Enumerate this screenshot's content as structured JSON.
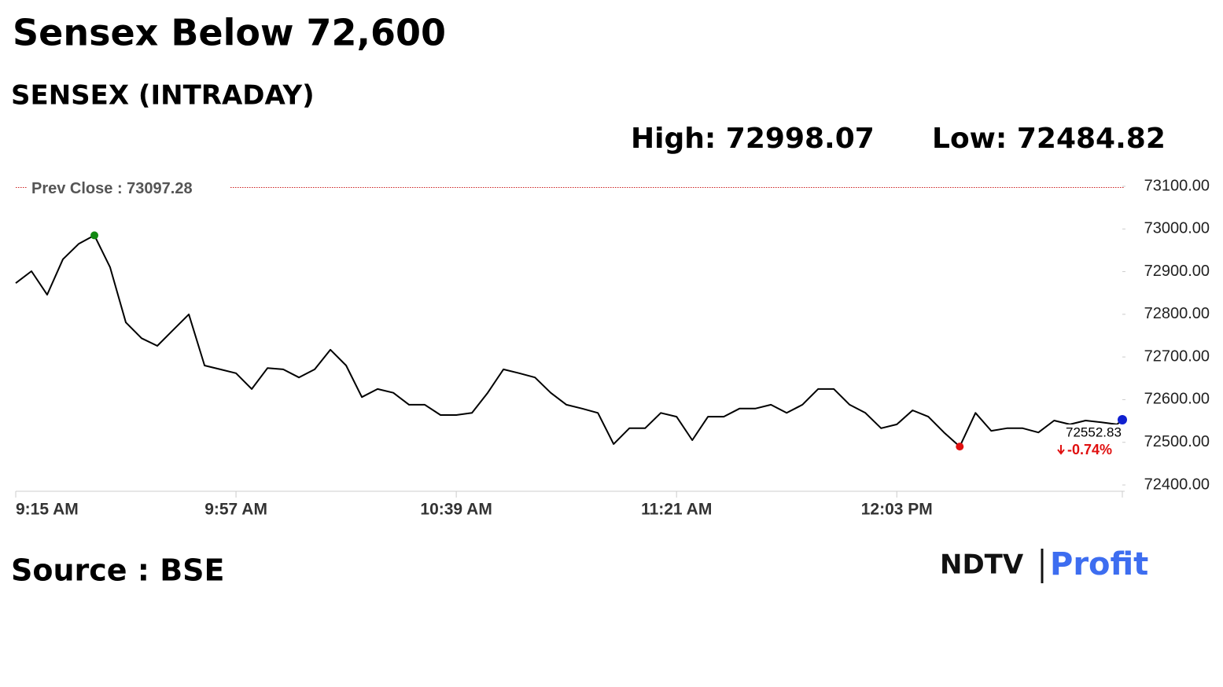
{
  "chart_data": {
    "type": "line",
    "title": "Sensex Below 72,600",
    "subtitle": "SENSEX (INTRADAY)",
    "high_label": "High: 72998.07",
    "low_label": "Low: 72484.82",
    "prev_close": {
      "value": 73097.28,
      "label": "Prev Close : 73097.28",
      "color": "#cc2222"
    },
    "change_label": "-0.74%",
    "source": "Source : BSE",
    "logo": {
      "left": "NDTV",
      "right": "Profit"
    },
    "x": [
      "9:15 AM",
      "9:18 AM",
      "9:21 AM",
      "9:24 AM",
      "9:27 AM",
      "9:30 AM",
      "9:33 AM",
      "9:36 AM",
      "9:39 AM",
      "9:42 AM",
      "9:45 AM",
      "9:48 AM",
      "9:51 AM",
      "9:54 AM",
      "9:57 AM",
      "10:00 AM",
      "10:03 AM",
      "10:06 AM",
      "10:09 AM",
      "10:12 AM",
      "10:15 AM",
      "10:18 AM",
      "10:21 AM",
      "10:24 AM",
      "10:27 AM",
      "10:30 AM",
      "10:33 AM",
      "10:36 AM",
      "10:39 AM",
      "10:42 AM",
      "10:45 AM",
      "10:48 AM",
      "10:51 AM",
      "10:54 AM",
      "10:57 AM",
      "11:00 AM",
      "11:03 AM",
      "11:06 AM",
      "11:09 AM",
      "11:12 AM",
      "11:15 AM",
      "11:18 AM",
      "11:21 AM",
      "11:24 AM",
      "11:27 AM",
      "11:30 AM",
      "11:33 AM",
      "11:36 AM",
      "11:39 AM",
      "11:42 AM",
      "11:45 AM",
      "11:48 AM",
      "11:51 AM",
      "11:54 AM",
      "11:57 AM",
      "12:00 PM",
      "12:03 PM",
      "12:06 PM",
      "12:09 PM",
      "12:12 PM",
      "12:15 PM",
      "12:18 PM",
      "12:21 PM",
      "12:24 PM",
      "12:27 PM",
      "12:30 PM",
      "12:33 PM",
      "12:36 PM",
      "12:39 PM",
      "12:42 PM",
      "12:45 PM",
      "12:46 PM"
    ],
    "series": [
      {
        "name": "SENSEX",
        "color": "#000000",
        "values": [
          72873,
          72901,
          72846,
          72929,
          72965,
          72985,
          72910,
          72781,
          72744,
          72726,
          72763,
          72800,
          72680,
          72671,
          72662,
          72625,
          72674,
          72671,
          72652,
          72671,
          72717,
          72680,
          72606,
          72625,
          72616,
          72588,
          72588,
          72564,
          72564,
          72569,
          72616,
          72671,
          72662,
          72652,
          72616,
          72588,
          72579,
          72569,
          72496,
          72533,
          72533,
          72569,
          72560,
          72505,
          72560,
          72560,
          72579,
          72579,
          72588,
          72569,
          72588,
          72625,
          72625,
          72588,
          72569,
          72533,
          72542,
          72575,
          72560,
          72523,
          72490,
          72569,
          72527,
          72533,
          72533,
          72523,
          72551,
          72542,
          72551,
          72547,
          72542,
          72552.83
        ]
      }
    ],
    "xlim": [
      "9:15 AM",
      "12:46 PM"
    ],
    "xticks": [
      "9:15 AM",
      "9:57 AM",
      "10:39 AM",
      "11:21 AM",
      "12:03 PM"
    ],
    "ylim": [
      72400,
      73100
    ],
    "yticks": [
      {
        "value": 72400,
        "label": "72400.00"
      },
      {
        "value": 72500,
        "label": "72500.00"
      },
      {
        "value": 72600,
        "label": "72600.00"
      },
      {
        "value": 72700,
        "label": "72700.00"
      },
      {
        "value": 72800,
        "label": "72800.00"
      },
      {
        "value": 72900,
        "label": "72900.00"
      },
      {
        "value": 73000,
        "label": "73000.00"
      },
      {
        "value": 73100,
        "label": "73100.00"
      }
    ],
    "high_color": "#118811",
    "low_color": "#e01010",
    "last_color": "#1020d0"
  }
}
